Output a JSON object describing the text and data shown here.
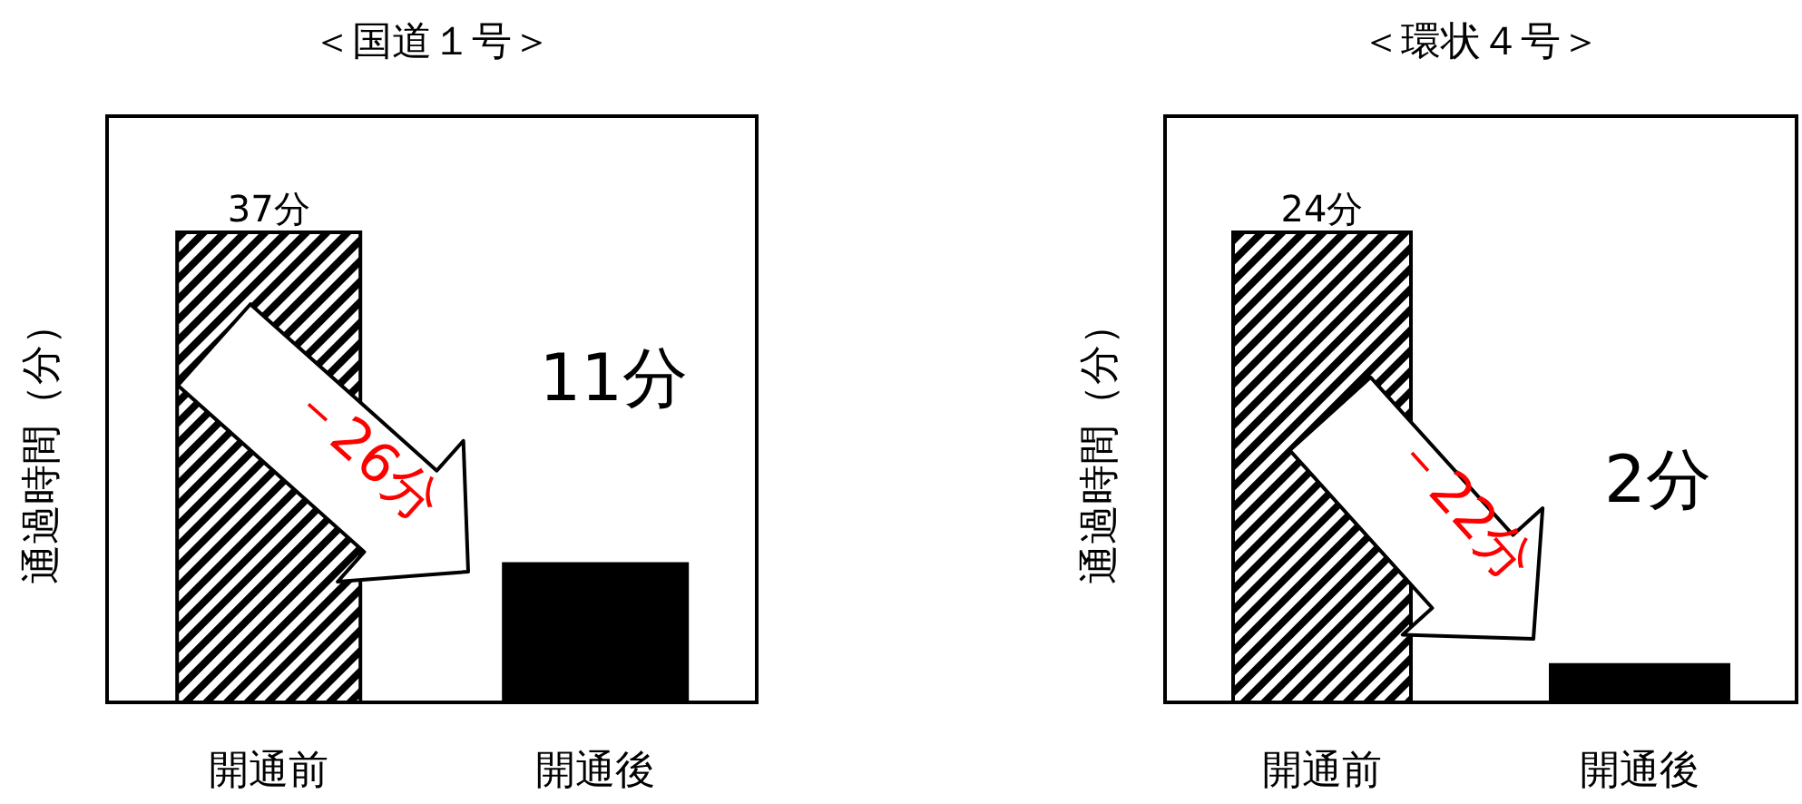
{
  "chart_data": [
    {
      "type": "bar",
      "title": "＜国道１号＞",
      "ylabel": "通過時間（分）",
      "categories": [
        "開通前",
        "開通後"
      ],
      "values": [
        37,
        11
      ],
      "value_labels": [
        "37分",
        "11分"
      ],
      "colors": [
        "#000000",
        "#000000"
      ],
      "annotations": [
        "－26分"
      ],
      "legend": false,
      "grid": false
    },
    {
      "type": "bar",
      "title": "＜環状４号＞",
      "ylabel": "通過時間（分）",
      "categories": [
        "開通前",
        "開通後"
      ],
      "values": [
        24,
        2
      ],
      "value_labels": [
        "24分",
        "2分"
      ],
      "colors": [
        "#000000",
        "#000000"
      ],
      "annotations": [
        "－22分"
      ],
      "legend": false,
      "grid": false
    }
  ]
}
